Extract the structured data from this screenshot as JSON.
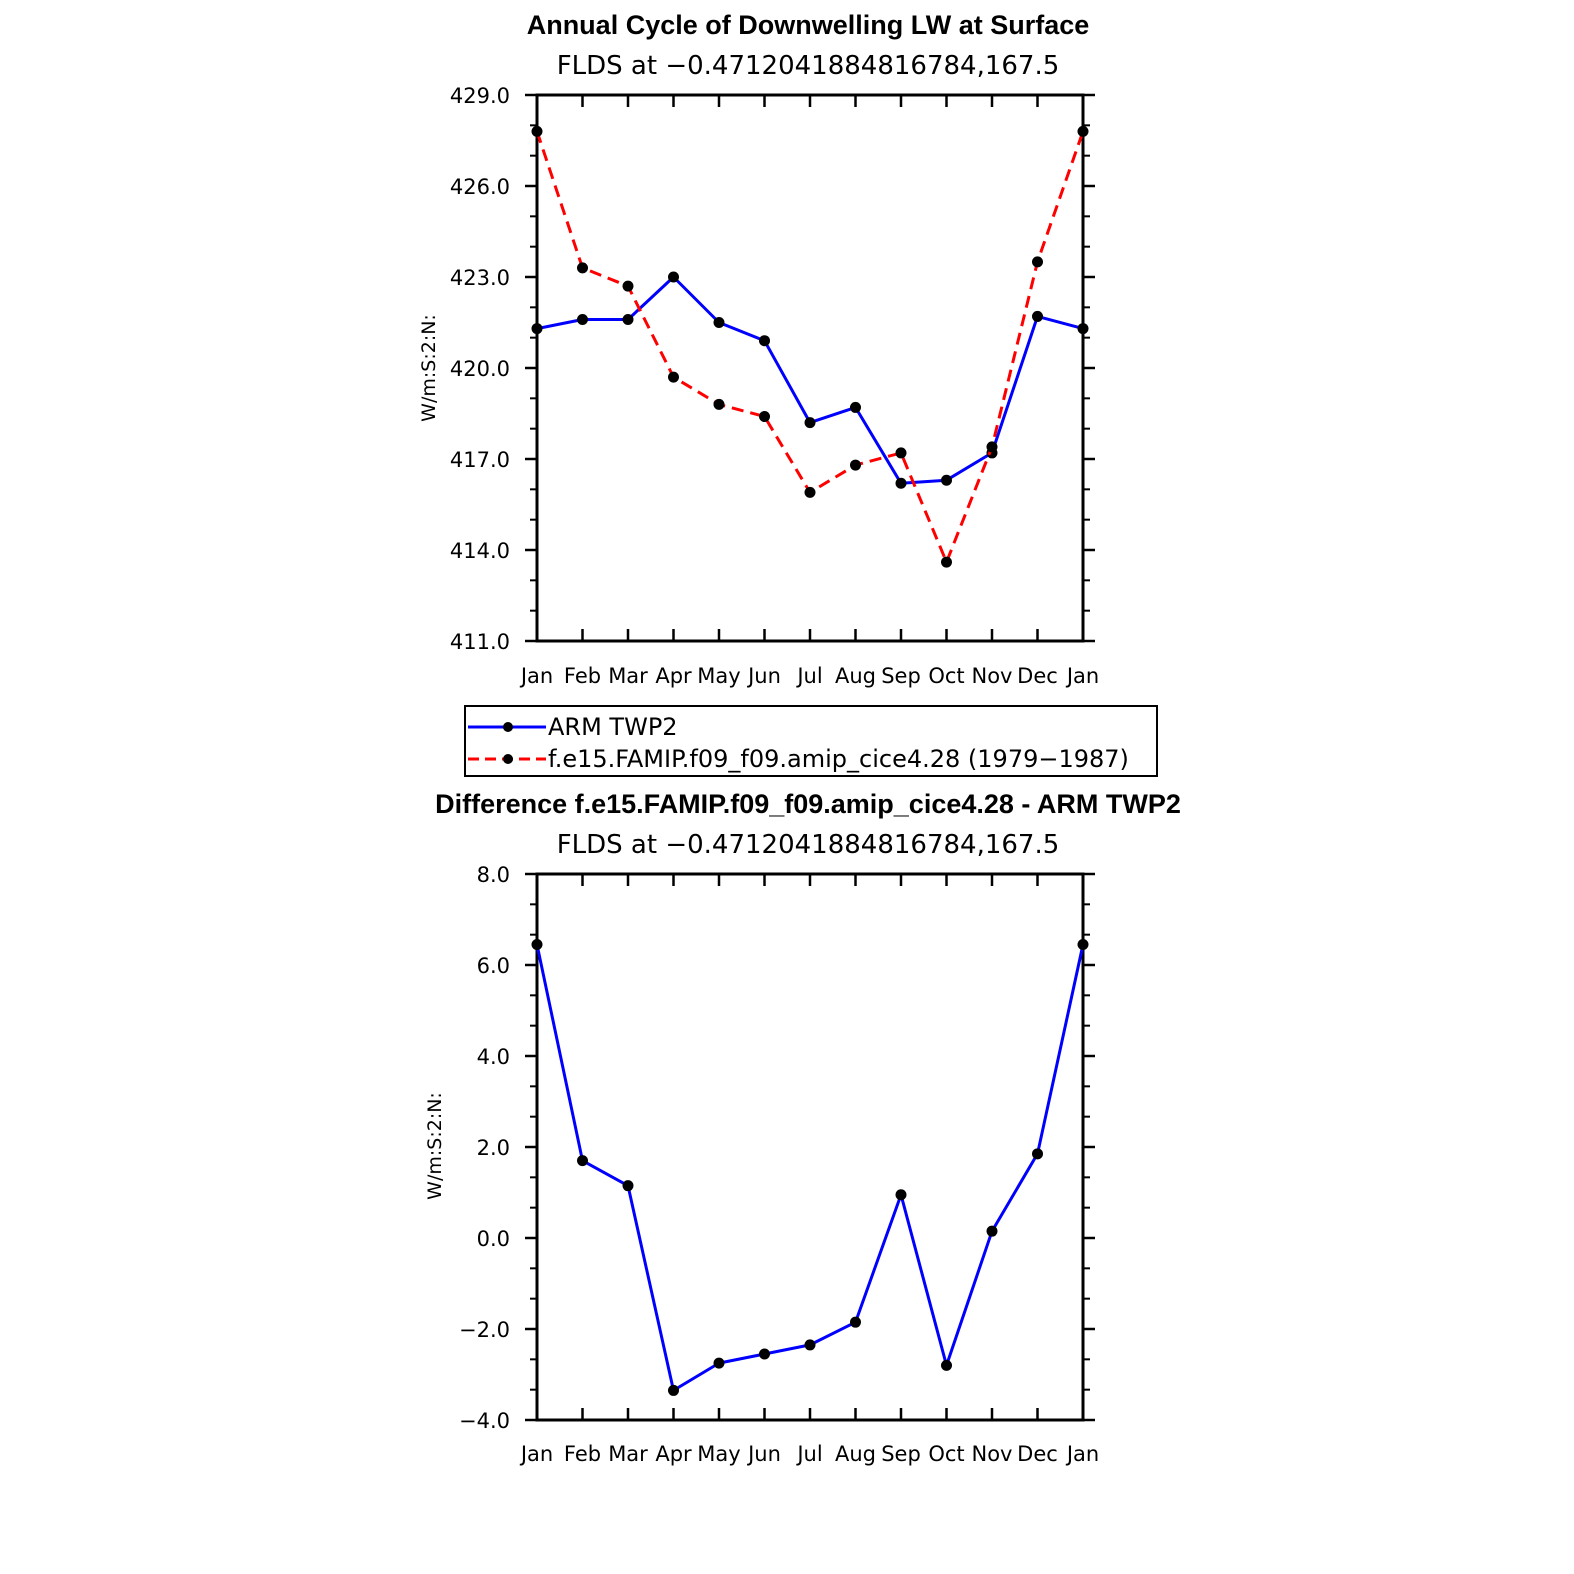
{
  "chart_data": [
    {
      "type": "line",
      "title": "Annual Cycle of Downwelling LW at Surface",
      "subtitle": "FLDS at −0.4712041884816784,167.5",
      "ylabel": "W/m:S:2:N:",
      "xlabel": "",
      "categories": [
        "Jan",
        "Feb",
        "Mar",
        "Apr",
        "May",
        "Jun",
        "Jul",
        "Aug",
        "Sep",
        "Oct",
        "Nov",
        "Dec",
        "Jan"
      ],
      "ylim": [
        411.0,
        429.0
      ],
      "yticks": [
        411.0,
        414.0,
        417.0,
        420.0,
        423.0,
        426.0,
        429.0
      ],
      "ytick_labels": [
        "411.0",
        "414.0",
        "417.0",
        "420.0",
        "423.0",
        "426.0",
        "429.0"
      ],
      "series": [
        {
          "name": "ARM TWP2",
          "color": "#0000ff",
          "dash": "solid",
          "values": [
            421.3,
            421.6,
            421.6,
            423.0,
            421.5,
            420.9,
            418.2,
            418.7,
            416.2,
            416.3,
            417.2,
            421.7,
            421.3
          ]
        },
        {
          "name": "f.e15.FAMIP.f09_f09.amip_cice4.28 (1979−1987)",
          "color": "#ff0000",
          "dash": "dashed",
          "values": [
            427.8,
            423.3,
            422.7,
            419.7,
            418.8,
            418.4,
            415.9,
            416.8,
            417.2,
            413.6,
            417.4,
            423.5,
            427.8
          ]
        }
      ],
      "legend": "below"
    },
    {
      "type": "line",
      "title": "Difference f.e15.FAMIP.f09_f09.amip_cice4.28 - ARM TWP2",
      "subtitle": "FLDS at −0.4712041884816784,167.5",
      "ylabel": "W/m:S:2:N:",
      "xlabel": "",
      "categories": [
        "Jan",
        "Feb",
        "Mar",
        "Apr",
        "May",
        "Jun",
        "Jul",
        "Aug",
        "Sep",
        "Oct",
        "Nov",
        "Dec",
        "Jan"
      ],
      "ylim": [
        -4.0,
        8.0
      ],
      "yticks": [
        -4.0,
        -2.0,
        0.0,
        2.0,
        4.0,
        6.0,
        8.0
      ],
      "ytick_labels": [
        "−4.0",
        "−2.0",
        "0.0",
        "2.0",
        "4.0",
        "6.0",
        "8.0"
      ],
      "series": [
        {
          "color": "#0000ff",
          "dash": "solid",
          "values": [
            6.45,
            1.7,
            1.15,
            -3.35,
            -2.75,
            -2.55,
            -2.35,
            -1.85,
            0.95,
            -2.8,
            0.15,
            1.85,
            6.45
          ]
        }
      ]
    }
  ]
}
